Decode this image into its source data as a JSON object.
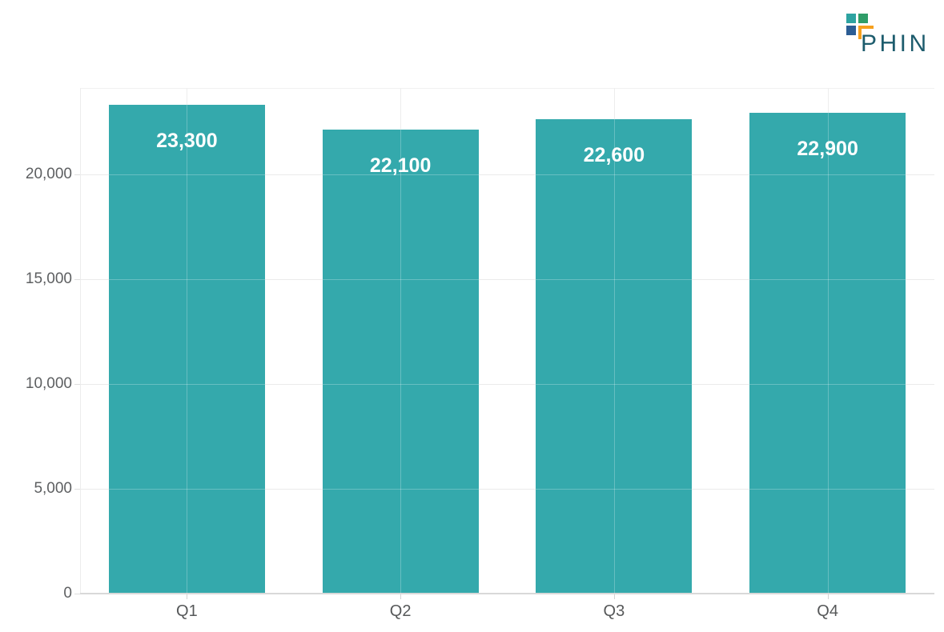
{
  "page": {
    "background": "#ffffff"
  },
  "logo": {
    "text": "PHIN",
    "text_color": "#1d5c6d",
    "square_teal": "#2ea3a1",
    "square_green": "#2f9d68",
    "square_blue": "#2c5d94",
    "corner_orange": "#f6a01e"
  },
  "chart_data": {
    "type": "bar",
    "title": "",
    "xlabel": "",
    "ylabel": "",
    "categories": [
      "Q1",
      "Q2",
      "Q3",
      "Q4"
    ],
    "values": [
      23300,
      22100,
      22600,
      22900
    ],
    "value_labels": [
      "23,300",
      "22,100",
      "22,600",
      "22,900"
    ],
    "yticks": [
      {
        "value": 0,
        "label": "0"
      },
      {
        "value": 5000,
        "label": "5,000"
      },
      {
        "value": 10000,
        "label": "10,000"
      },
      {
        "value": 15000,
        "label": "15,000"
      },
      {
        "value": 20000,
        "label": "20,000"
      }
    ],
    "ylim": [
      0,
      24100
    ],
    "grid": true,
    "legend": false,
    "bar_color": "#34a9ac",
    "value_label_color": "#ffffff",
    "axis_text_color": "#5d5f61"
  }
}
